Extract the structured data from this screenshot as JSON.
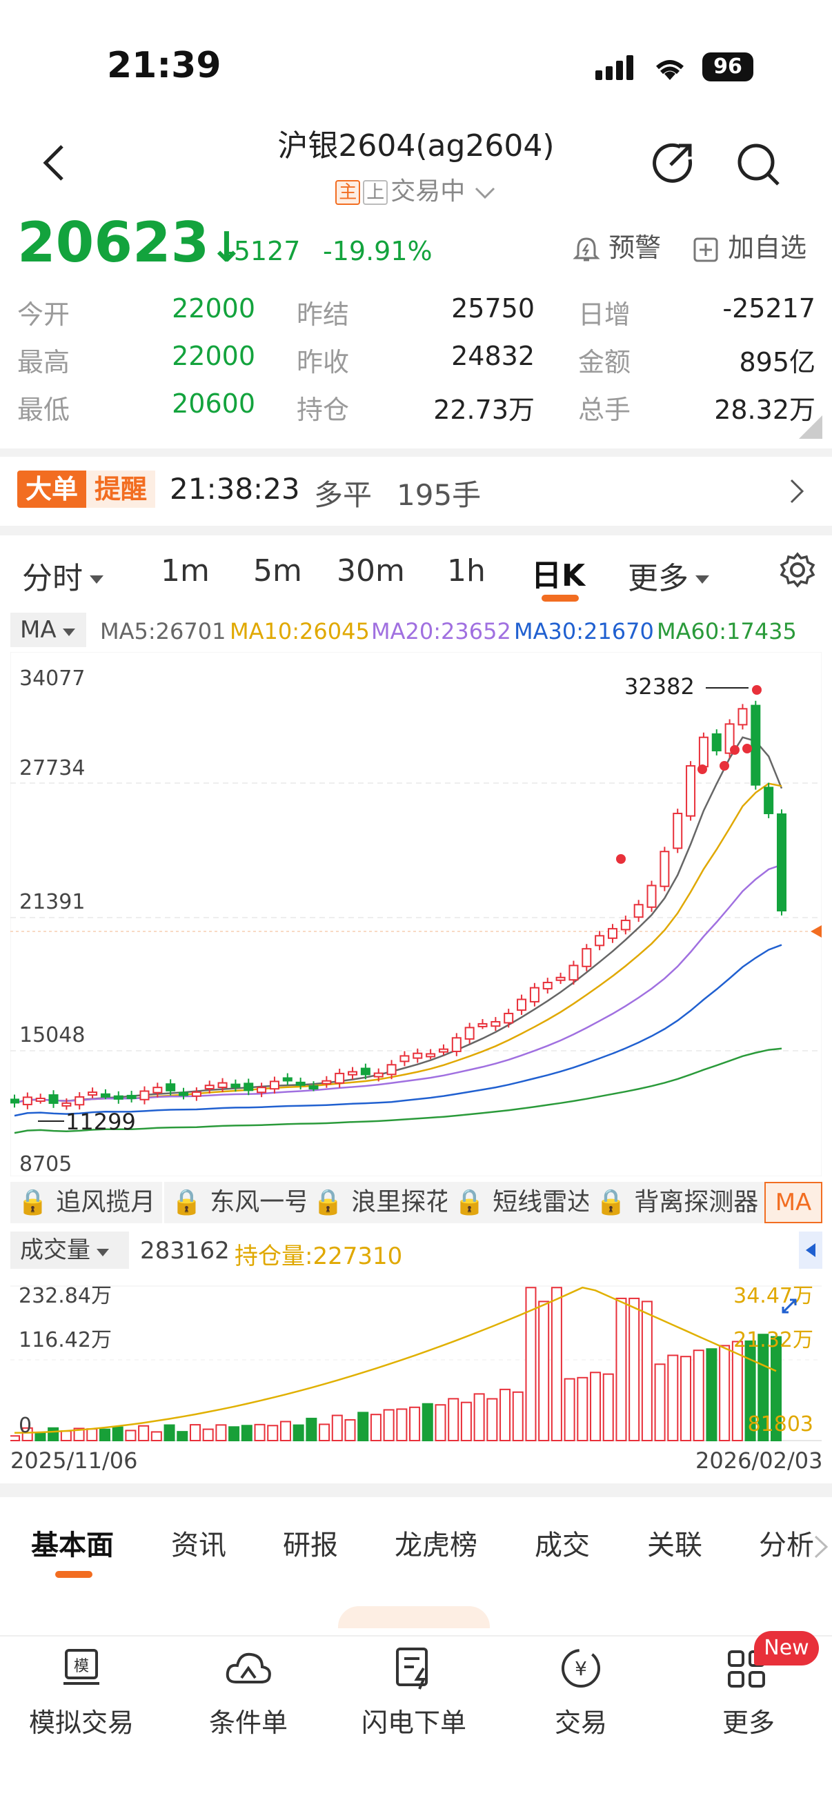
{
  "status_bar": {
    "time": "21:39",
    "battery": "96"
  },
  "header": {
    "title": "沪银2604(ag2604)",
    "tag_main": "主",
    "tag_up": "上",
    "trade_status": "交易中"
  },
  "quote": {
    "price": "20623",
    "arrow": "↓",
    "change": "-5127",
    "change_pct": "-19.91%",
    "alert_label": "预警",
    "watch_label": "加自选",
    "rows": [
      [
        {
          "label": "今开",
          "value": "22000"
        },
        {
          "label": "昨结",
          "value": "25750"
        },
        {
          "label": "日增",
          "value": "-25217"
        }
      ],
      [
        {
          "label": "最高",
          "value": "22000"
        },
        {
          "label": "昨收",
          "value": "24832"
        },
        {
          "label": "金额",
          "value": "895亿"
        }
      ],
      [
        {
          "label": "最低",
          "value": "20600"
        },
        {
          "label": "持仓",
          "value": "22.73万"
        },
        {
          "label": "总手",
          "value": "28.32万"
        }
      ]
    ]
  },
  "big_order": {
    "badge1": "大单",
    "badge2": "提醒",
    "time": "21:38:23",
    "action": "多平",
    "qty": "195手"
  },
  "period_tabs": {
    "items": [
      "分时",
      "1m",
      "5m",
      "30m",
      "1h",
      "日K",
      "更多"
    ],
    "active": "日K"
  },
  "ma_legend": {
    "selector": "MA",
    "items": [
      {
        "text": "MA5:26701",
        "color": "#666666"
      },
      {
        "text": "MA10:26045",
        "color": "#e0a800"
      },
      {
        "text": "MA20:23652",
        "color": "#a070e0"
      },
      {
        "text": "MA30:21670",
        "color": "#2060d0"
      },
      {
        "text": "MA60:17435",
        "color": "#2a9a3a"
      }
    ]
  },
  "kline": {
    "y_ticks": [
      "34077",
      "27734",
      "21391",
      "15048",
      "8705"
    ],
    "high_label": "32382",
    "low_label": "11299"
  },
  "indicator_tools": {
    "items": [
      "追风揽月",
      "东风一号",
      "浪里探花",
      "短线雷达",
      "背离探测器"
    ],
    "active": "MA"
  },
  "volume": {
    "selector": "成交量",
    "volume_value": "283162",
    "oi_label": "持仓量:227310",
    "y_ticks": [
      "232.84万",
      "116.42万",
      "0"
    ],
    "oi_ticks": [
      "34.47万",
      "21.32万"
    ],
    "last_value": "81803",
    "date_start": "2025/11/06",
    "date_end": "2026/02/03"
  },
  "bottom_tabs": {
    "items": [
      "基本面",
      "资讯",
      "研报",
      "龙虎榜",
      "成交",
      "关联",
      "分析"
    ],
    "active": "基本面"
  },
  "bottom_nav": {
    "items": [
      {
        "label": "模拟交易",
        "icon": "simulate-icon"
      },
      {
        "label": "条件单",
        "icon": "cloud-icon"
      },
      {
        "label": "闪电下单",
        "icon": "lightning-order-icon"
      },
      {
        "label": "交易",
        "icon": "trade-icon"
      },
      {
        "label": "更多",
        "icon": "grid-icon"
      }
    ],
    "new_badge": "New"
  },
  "colors": {
    "up": "#e8303a",
    "down": "#13a33d",
    "accent": "#f26d21"
  }
}
